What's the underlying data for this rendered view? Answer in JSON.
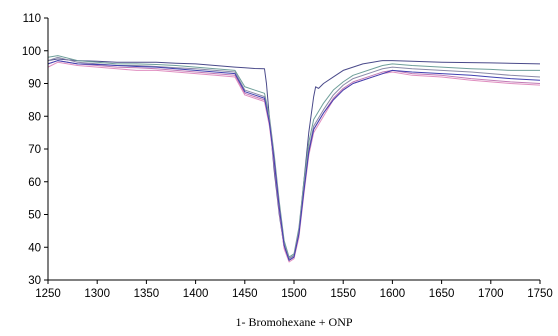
{
  "chart_data": {
    "type": "line",
    "title": "",
    "xlabel": "1- Bromohexane + ONP",
    "ylabel": "",
    "xlim": [
      1250,
      1750
    ],
    "ylim": [
      30,
      110
    ],
    "x_ticks": [
      1250,
      1300,
      1350,
      1400,
      1450,
      1500,
      1550,
      1600,
      1650,
      1700,
      1750
    ],
    "y_ticks": [
      30,
      40,
      50,
      60,
      70,
      80,
      90,
      100,
      110
    ],
    "grid": false,
    "legend": "none",
    "series": [
      {
        "color": "#4a4a8a",
        "x": [
          1250,
          1260,
          1280,
          1300,
          1320,
          1340,
          1360,
          1380,
          1400,
          1420,
          1440,
          1450,
          1460,
          1470,
          1472,
          1476,
          1480,
          1485,
          1490,
          1495,
          1500,
          1505,
          1510,
          1515,
          1520,
          1522,
          1525,
          1530,
          1540,
          1550,
          1560,
          1570,
          1580,
          1590,
          1600,
          1620,
          1650,
          1700,
          1750
        ],
        "y": [
          97,
          97.5,
          97,
          96.8,
          96.5,
          96.5,
          96.5,
          96.2,
          96,
          95.5,
          95,
          94.8,
          94.6,
          94.5,
          90,
          76,
          63,
          50,
          40,
          36.5,
          37.5,
          45,
          60,
          75,
          86,
          89,
          88.5,
          90,
          92,
          94,
          95,
          96,
          96.5,
          97,
          97,
          96.8,
          96.5,
          96.3,
          96
        ]
      },
      {
        "color": "#6f9f9a",
        "x": [
          1250,
          1260,
          1280,
          1300,
          1320,
          1340,
          1360,
          1380,
          1400,
          1420,
          1440,
          1450,
          1460,
          1470,
          1475,
          1480,
          1485,
          1490,
          1495,
          1500,
          1505,
          1510,
          1515,
          1520,
          1530,
          1540,
          1550,
          1560,
          1580,
          1590,
          1600,
          1620,
          1650,
          1680,
          1700,
          1720,
          1750
        ],
        "y": [
          98,
          98.5,
          97,
          96.5,
          96,
          96,
          95.8,
          95.5,
          95,
          94.5,
          94,
          89,
          88,
          87,
          80,
          68,
          54,
          42,
          37,
          38,
          46,
          60,
          72,
          79,
          84,
          88,
          90.5,
          92.5,
          94.5,
          95.5,
          96,
          95.5,
          95,
          94.5,
          94.3,
          94,
          94
        ]
      },
      {
        "color": "#8a8aa8",
        "x": [
          1250,
          1260,
          1280,
          1300,
          1320,
          1340,
          1360,
          1380,
          1400,
          1420,
          1440,
          1450,
          1460,
          1470,
          1475,
          1480,
          1485,
          1490,
          1495,
          1500,
          1505,
          1510,
          1515,
          1520,
          1530,
          1540,
          1550,
          1560,
          1580,
          1590,
          1600,
          1620,
          1650,
          1680,
          1700,
          1720,
          1750
        ],
        "y": [
          97,
          98,
          96.5,
          96,
          95.5,
          95.5,
          95.2,
          94.8,
          94.5,
          94,
          93.5,
          88,
          87,
          86,
          79,
          67,
          53,
          41,
          36.5,
          37.5,
          45,
          58,
          70,
          77,
          82,
          86.5,
          89.5,
          91.5,
          93.5,
          94.5,
          95,
          94.5,
          94,
          93.5,
          93,
          92.5,
          92
        ]
      },
      {
        "color": "#c07ab5",
        "x": [
          1250,
          1260,
          1280,
          1300,
          1320,
          1340,
          1360,
          1380,
          1400,
          1420,
          1440,
          1450,
          1460,
          1470,
          1475,
          1480,
          1485,
          1490,
          1495,
          1500,
          1505,
          1510,
          1515,
          1520,
          1530,
          1540,
          1550,
          1560,
          1580,
          1590,
          1600,
          1620,
          1650,
          1680,
          1700,
          1720,
          1750
        ],
        "y": [
          96,
          97,
          96,
          95.5,
          95,
          94.8,
          94.5,
          94,
          93.5,
          93,
          92.5,
          87,
          86,
          85,
          78,
          66,
          52,
          40,
          36,
          37,
          44,
          57,
          69,
          76,
          81,
          85.5,
          88.5,
          90.5,
          92.5,
          93.5,
          94,
          93,
          92.5,
          91.5,
          91,
          90.5,
          90
        ]
      },
      {
        "color": "#e08fc0",
        "x": [
          1250,
          1260,
          1280,
          1300,
          1320,
          1340,
          1360,
          1380,
          1400,
          1420,
          1440,
          1450,
          1460,
          1470,
          1475,
          1480,
          1485,
          1490,
          1495,
          1500,
          1505,
          1510,
          1515,
          1520,
          1530,
          1540,
          1550,
          1560,
          1580,
          1590,
          1600,
          1620,
          1650,
          1680,
          1700,
          1720,
          1750
        ],
        "y": [
          95,
          96.5,
          95.5,
          95,
          94.5,
          94,
          94,
          93.5,
          93,
          92.5,
          92,
          86.5,
          85.5,
          84.5,
          77,
          65,
          51,
          39.5,
          35.5,
          36.5,
          43,
          56,
          68,
          75,
          80,
          85,
          88,
          90,
          92,
          93,
          93.5,
          92.5,
          92,
          91,
          90.5,
          90,
          89.5
        ]
      },
      {
        "color": "#4040b0",
        "x": [
          1250,
          1260,
          1280,
          1300,
          1320,
          1340,
          1360,
          1380,
          1400,
          1420,
          1440,
          1450,
          1460,
          1470,
          1475,
          1480,
          1485,
          1490,
          1495,
          1500,
          1505,
          1510,
          1515,
          1520,
          1530,
          1540,
          1550,
          1560,
          1580,
          1590,
          1600,
          1620,
          1650,
          1680,
          1700,
          1720,
          1750
        ],
        "y": [
          96,
          97,
          96,
          95.8,
          95.5,
          95.2,
          95,
          94.5,
          94,
          93.5,
          93,
          87.5,
          86.5,
          85.5,
          78,
          66,
          52,
          40.5,
          36,
          37,
          44,
          57,
          69,
          76,
          81,
          85,
          88,
          90,
          92,
          93,
          94,
          93.5,
          93,
          92.5,
          92,
          91.5,
          91
        ]
      }
    ]
  }
}
